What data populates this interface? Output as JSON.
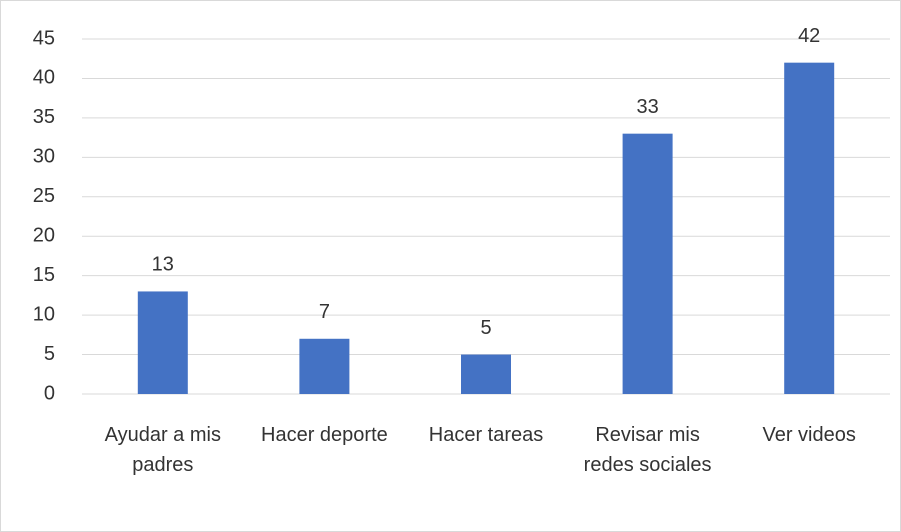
{
  "chart_data": {
    "type": "bar",
    "categories": [
      "Ayudar a mis padres",
      "Hacer deporte",
      "Hacer tareas",
      "Revisar mis redes sociales",
      "Ver videos"
    ],
    "values": [
      13,
      7,
      5,
      33,
      42
    ],
    "color": "#4472c4",
    "ylim": [
      0,
      45
    ],
    "yticks": [
      0,
      5,
      10,
      15,
      20,
      25,
      30,
      35,
      40,
      45
    ],
    "grid": true
  }
}
